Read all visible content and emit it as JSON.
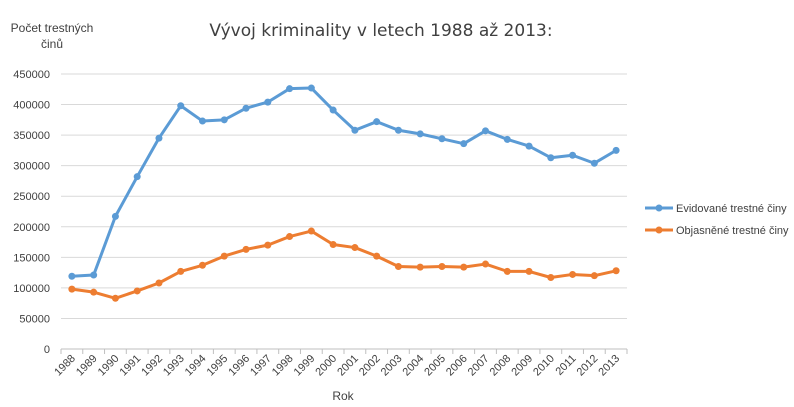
{
  "chart_data": {
    "type": "line",
    "title": "Vývoj kriminality v letech 1988 až 2013:",
    "xlabel": "Rok",
    "ylabel_lines": [
      "Počet trestných",
      "činů"
    ],
    "ylim": [
      0,
      450000
    ],
    "y_ticks": [
      "0",
      "50000",
      "100000",
      "150000",
      "200000",
      "250000",
      "300000",
      "350000",
      "400000",
      "450000"
    ],
    "y_tick_values": [
      0,
      50000,
      100000,
      150000,
      200000,
      250000,
      300000,
      350000,
      400000,
      450000
    ],
    "grid": true,
    "legend_position": "right",
    "categories": [
      "1988",
      "1989",
      "1990",
      "1991",
      "1992",
      "1993",
      "1994",
      "1995",
      "1996",
      "1997",
      "1998",
      "1999",
      "2000",
      "2001",
      "2002",
      "2003",
      "2004",
      "2005",
      "2006",
      "2007",
      "2008",
      "2009",
      "2010",
      "2011",
      "2012",
      "2013"
    ],
    "series": [
      {
        "name": "Evidované trestné činy",
        "color": "#5b9bd5",
        "values": [
          119000,
          121000,
          217000,
          282000,
          345000,
          398000,
          373000,
          375000,
          394000,
          404000,
          426000,
          427000,
          391000,
          358000,
          372000,
          358000,
          352000,
          344000,
          336000,
          357000,
          343000,
          332000,
          313000,
          317000,
          304000,
          325000
        ]
      },
      {
        "name": "Objasněné trestné činy",
        "color": "#ed7d31",
        "values": [
          98000,
          93000,
          83000,
          95000,
          108000,
          127000,
          137000,
          152000,
          163000,
          170000,
          184000,
          193000,
          171000,
          166000,
          152000,
          135000,
          134000,
          135000,
          134000,
          139000,
          127000,
          127000,
          117000,
          122000,
          120000,
          128000
        ]
      }
    ]
  }
}
